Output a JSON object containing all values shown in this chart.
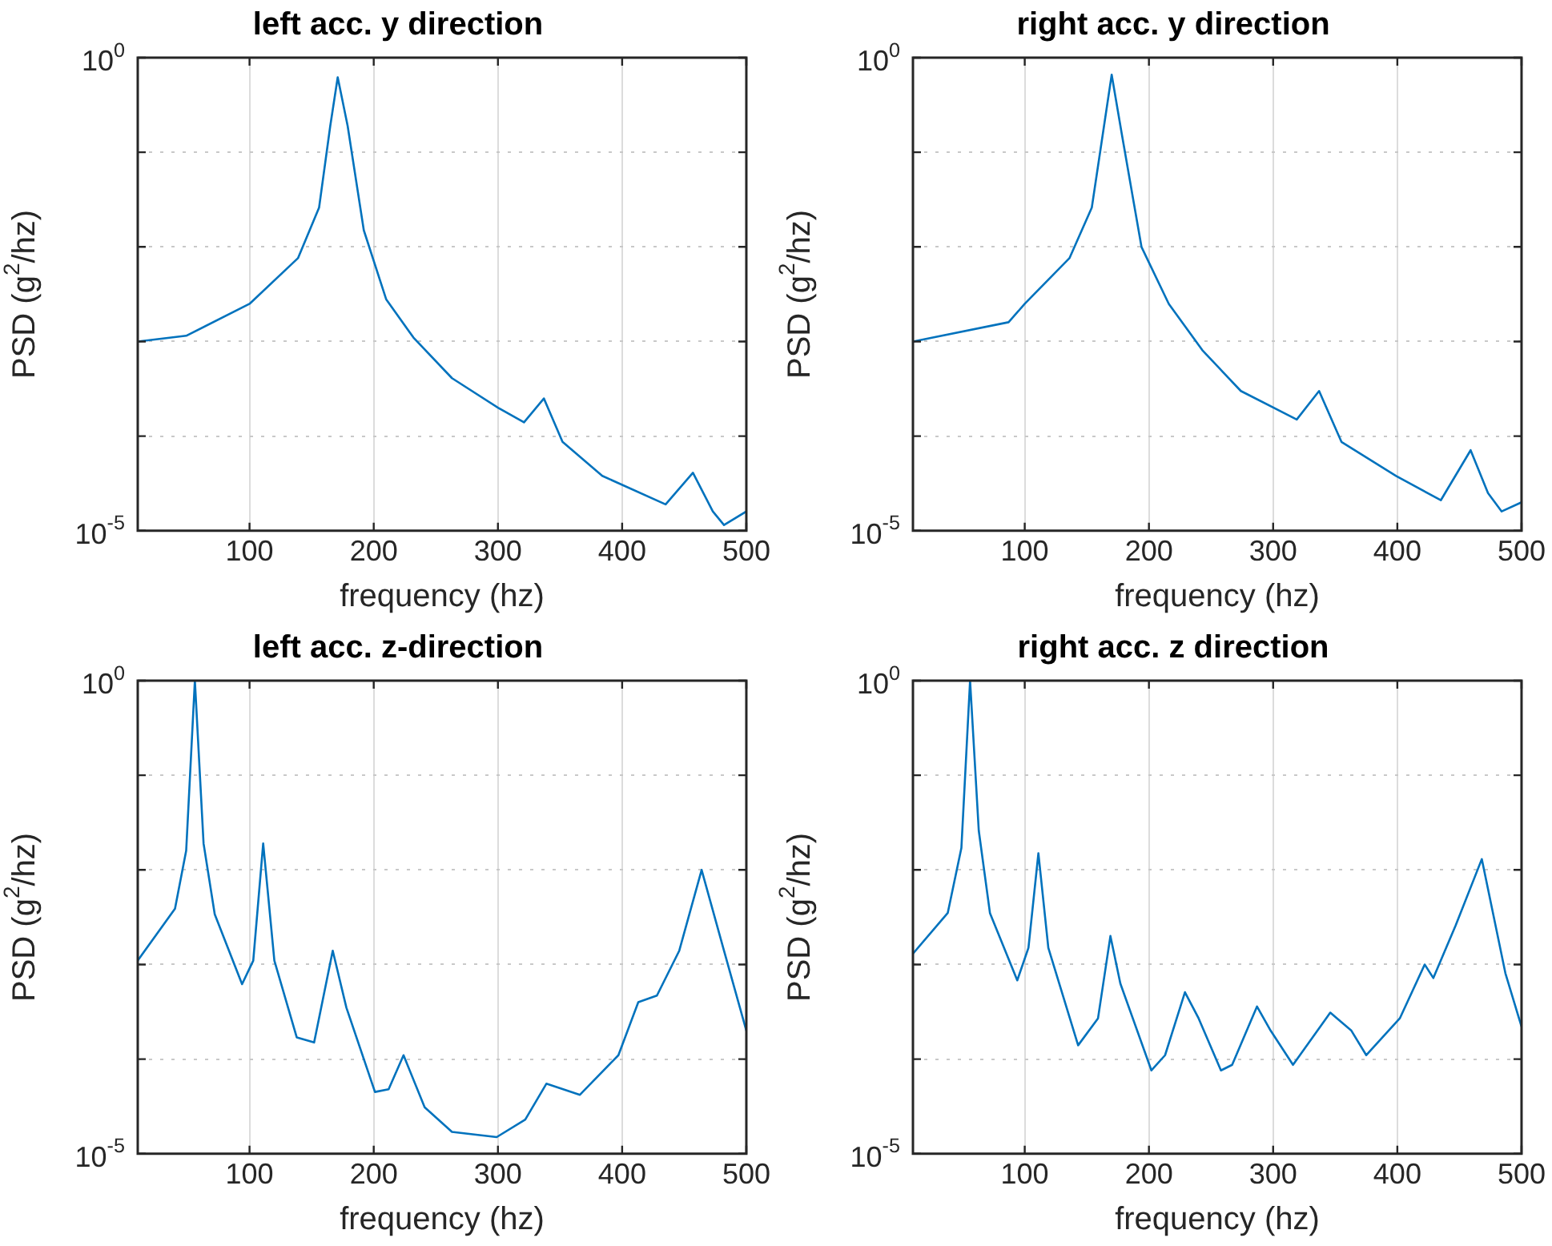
{
  "chart_data": [
    {
      "type": "line",
      "title": "left acc. y direction",
      "xlabel": "frequency (hz)",
      "ylabel": "PSD (g$^{2}$/hz)",
      "log": true,
      "grid": true,
      "xlim": [
        10,
        500
      ],
      "xticks": [
        100,
        200,
        300,
        400,
        500
      ],
      "ylim": [
        1e-05,
        1
      ],
      "yticks": [
        {
          "value": 1e-05,
          "label": "10$^{-5}$"
        },
        {
          "value": 0.0001,
          "label": null
        },
        {
          "value": 0.001,
          "label": null
        },
        {
          "value": 0.01,
          "label": null
        },
        {
          "value": 0.1,
          "label": null
        },
        {
          "value": 1,
          "label": "10$^{0}$"
        }
      ],
      "x": [
        10,
        49,
        100,
        139,
        156,
        165,
        171,
        179,
        192,
        210,
        232,
        263,
        300,
        321,
        337,
        352,
        384,
        435,
        457,
        473,
        482,
        500
      ],
      "series": [
        {
          "color": "#0072bd",
          "values": [
            0.001,
            0.00115,
            0.0025,
            0.0076,
            0.026,
            0.19,
            0.62,
            0.19,
            0.015,
            0.0028,
            0.0011,
            0.00041,
            0.0002,
            0.00014,
            0.00025,
            8.7e-05,
            3.8e-05,
            1.9e-05,
            4.1e-05,
            1.6e-05,
            1.15e-05,
            1.6e-05
          ]
        }
      ]
    },
    {
      "type": "line",
      "title": "right acc. y direction",
      "xlabel": "frequency (hz)",
      "ylabel": "PSD (g$^{2}$/hz)",
      "log": true,
      "grid": true,
      "xlim": [
        10,
        500
      ],
      "xticks": [
        100,
        200,
        300,
        400,
        500
      ],
      "ylim": [
        1e-05,
        1
      ],
      "yticks": [
        {
          "value": 1e-05,
          "label": "10$^{-5}$"
        },
        {
          "value": 0.0001,
          "label": null
        },
        {
          "value": 0.001,
          "label": null
        },
        {
          "value": 0.01,
          "label": null
        },
        {
          "value": 0.1,
          "label": null
        },
        {
          "value": 1,
          "label": "10$^{0}$"
        }
      ],
      "x": [
        10,
        87,
        100,
        136,
        154,
        163,
        170,
        178,
        194,
        216,
        243,
        274,
        319,
        337,
        355,
        399,
        435,
        459,
        473,
        484,
        500
      ],
      "series": [
        {
          "color": "#0072bd",
          "values": [
            0.001,
            0.0016,
            0.0025,
            0.0076,
            0.026,
            0.16,
            0.66,
            0.16,
            0.01,
            0.0025,
            0.00081,
            0.0003,
            0.00015,
            0.0003,
            8.7e-05,
            3.8e-05,
            2.1e-05,
            7.1e-05,
            2.5e-05,
            1.6e-05,
            2e-05
          ]
        }
      ]
    },
    {
      "type": "line",
      "title": "left acc. z-direction",
      "xlabel": "frequency (hz)",
      "ylabel": "PSD (g$^{2}$/hz)",
      "log": true,
      "grid": true,
      "xlim": [
        10,
        500
      ],
      "xticks": [
        100,
        200,
        300,
        400,
        500
      ],
      "ylim": [
        1e-05,
        1
      ],
      "yticks": [
        {
          "value": 1e-05,
          "label": "10$^{-5}$"
        },
        {
          "value": 0.0001,
          "label": null
        },
        {
          "value": 0.001,
          "label": null
        },
        {
          "value": 0.01,
          "label": null
        },
        {
          "value": 0.1,
          "label": null
        },
        {
          "value": 1,
          "label": "10$^{0}$"
        }
      ],
      "x": [
        10,
        40,
        49,
        56,
        63,
        72,
        94,
        103,
        111,
        120,
        138,
        152,
        167,
        178,
        201,
        212,
        224,
        241,
        263,
        299,
        322,
        339,
        366,
        397,
        413,
        428,
        446,
        464,
        482,
        500
      ],
      "series": [
        {
          "color": "#0072bd",
          "values": [
            0.0011,
            0.0039,
            0.016,
            1,
            0.019,
            0.0034,
            0.00062,
            0.0011,
            0.019,
            0.0011,
            0.00017,
            0.00015,
            0.0014,
            0.00035,
            4.5e-05,
            4.8e-05,
            0.00011,
            3.1e-05,
            1.7e-05,
            1.5e-05,
            2.3e-05,
            5.5e-05,
            4.2e-05,
            0.00011,
            0.0004,
            0.00047,
            0.0014,
            0.01,
            0.0014,
            0.0002
          ]
        }
      ]
    },
    {
      "type": "line",
      "title": "right acc. z direction",
      "xlabel": "frequency (hz)",
      "ylabel": "PSD (g$^{2}$/hz)",
      "log": true,
      "grid": true,
      "xlim": [
        10,
        500
      ],
      "xticks": [
        100,
        200,
        300,
        400,
        500
      ],
      "ylim": [
        1e-05,
        1
      ],
      "yticks": [
        {
          "value": 1e-05,
          "label": "10$^{-5}$"
        },
        {
          "value": 0.0001,
          "label": null
        },
        {
          "value": 0.001,
          "label": null
        },
        {
          "value": 0.01,
          "label": null
        },
        {
          "value": 0.1,
          "label": null
        },
        {
          "value": 1,
          "label": "10$^{0}$"
        }
      ],
      "x": [
        10,
        38,
        49,
        56,
        63,
        72,
        94,
        103,
        111,
        119,
        143,
        159,
        169,
        177,
        202,
        213,
        229,
        240,
        258,
        267,
        287,
        298,
        316,
        346,
        363,
        375,
        402,
        422,
        429,
        447,
        468,
        487,
        500
      ],
      "series": [
        {
          "color": "#0072bd",
          "values": [
            0.0013,
            0.0035,
            0.017,
            1,
            0.026,
            0.0035,
            0.00068,
            0.0015,
            0.015,
            0.0015,
            0.00014,
            0.00027,
            0.002,
            0.00063,
            7.6e-05,
            0.00011,
            0.00051,
            0.00027,
            7.6e-05,
            8.7e-05,
            0.00036,
            0.0002,
            8.7e-05,
            0.00031,
            0.0002,
            0.00011,
            0.00027,
            0.001,
            0.00072,
            0.0026,
            0.013,
            0.00081,
            0.00022
          ]
        }
      ]
    }
  ]
}
